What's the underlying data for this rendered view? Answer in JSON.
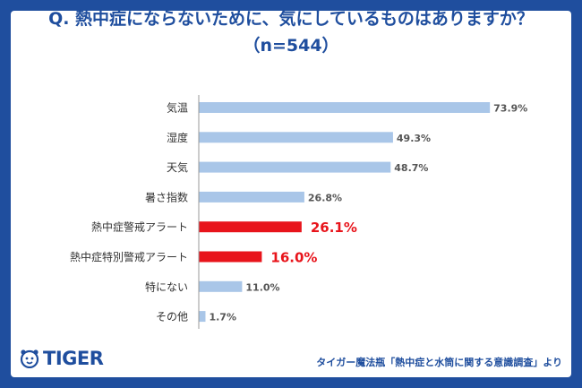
{
  "header": {
    "question": "Q. 熱中症にならないために、気にしているものはありますか？",
    "sample": "（n=544）"
  },
  "chart_data": {
    "type": "bar",
    "orientation": "horizontal",
    "title": "Q. 熱中症にならないために、気にしているものはありますか？（n=544）",
    "categories": [
      "気温",
      "湿度",
      "天気",
      "暑さ指数",
      "熱中症警戒アラート",
      "熱中症特別警戒アラート",
      "特にない",
      "その他"
    ],
    "values": [
      73.9,
      49.3,
      48.7,
      26.8,
      26.1,
      16.0,
      11.0,
      1.7
    ],
    "labels": [
      "73.9%",
      "49.3%",
      "48.7%",
      "26.8%",
      "26.1%",
      "16.0%",
      "11.0%",
      "1.7%"
    ],
    "highlight": [
      false,
      false,
      false,
      false,
      true,
      true,
      false,
      false
    ],
    "unit": "%",
    "xlim": [
      0,
      80
    ],
    "colors": {
      "normal": "#a9c6e8",
      "highlight": "#e8141b",
      "label": "#555555"
    }
  },
  "footer": {
    "brand": "TIGER",
    "source": "タイガー魔法瓶「熱中症と水筒に関する意識調査」より"
  }
}
